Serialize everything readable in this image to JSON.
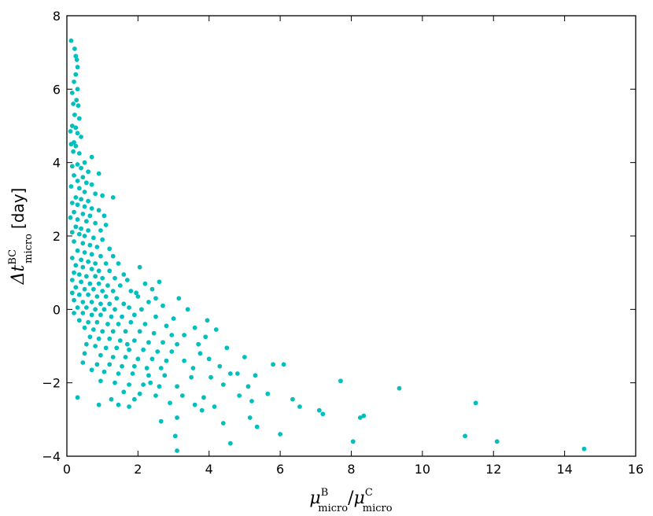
{
  "chart_data": {
    "type": "scatter",
    "title": "",
    "xlabel": {
      "base": "μ",
      "sup": "B",
      "sub": "micro",
      "sep": "/",
      "base2": "μ",
      "sup2": "C",
      "sub2": "micro"
    },
    "ylabel": {
      "base": "Δt",
      "sup": "BC",
      "sub": "micro",
      "unit": "[day]"
    },
    "xlim": [
      0,
      16
    ],
    "ylim": [
      -4,
      8
    ],
    "xticks": [
      "0",
      "2",
      "4",
      "6",
      "8",
      "10",
      "12",
      "14",
      "16"
    ],
    "yticks": [
      "−4",
      "−2",
      "0",
      "2",
      "4",
      "6",
      "8"
    ],
    "grid": false,
    "marker_color": "#00BFBF",
    "series": [
      {
        "points": [
          [
            0.12,
            7.32
          ],
          [
            0.22,
            7.1
          ],
          [
            0.25,
            6.9
          ],
          [
            0.28,
            6.8
          ],
          [
            0.3,
            6.6
          ],
          [
            0.25,
            6.4
          ],
          [
            0.2,
            6.2
          ],
          [
            0.3,
            6.0
          ],
          [
            0.15,
            5.9
          ],
          [
            0.27,
            5.7
          ],
          [
            0.18,
            5.6
          ],
          [
            0.32,
            5.55
          ],
          [
            0.22,
            5.3
          ],
          [
            0.35,
            5.2
          ],
          [
            0.15,
            5.0
          ],
          [
            0.25,
            4.95
          ],
          [
            0.1,
            4.85
          ],
          [
            0.3,
            4.8
          ],
          [
            0.4,
            4.7
          ],
          [
            0.2,
            4.55
          ],
          [
            0.12,
            4.5
          ],
          [
            0.25,
            4.45
          ],
          [
            0.18,
            4.3
          ],
          [
            0.35,
            4.25
          ],
          [
            0.7,
            4.15
          ],
          [
            0.5,
            4.0
          ],
          [
            0.3,
            3.95
          ],
          [
            0.15,
            3.9
          ],
          [
            0.4,
            3.85
          ],
          [
            0.6,
            3.75
          ],
          [
            0.9,
            3.7
          ],
          [
            0.2,
            3.65
          ],
          [
            0.45,
            3.6
          ],
          [
            0.3,
            3.5
          ],
          [
            0.55,
            3.45
          ],
          [
            0.7,
            3.4
          ],
          [
            0.12,
            3.35
          ],
          [
            0.35,
            3.3
          ],
          [
            0.5,
            3.2
          ],
          [
            0.8,
            3.15
          ],
          [
            1.0,
            3.1
          ],
          [
            0.25,
            3.05
          ],
          [
            0.4,
            3.0
          ],
          [
            0.6,
            2.95
          ],
          [
            1.3,
            3.05
          ],
          [
            0.15,
            2.9
          ],
          [
            0.3,
            2.85
          ],
          [
            0.5,
            2.8
          ],
          [
            0.7,
            2.75
          ],
          [
            0.9,
            2.7
          ],
          [
            0.2,
            2.65
          ],
          [
            0.45,
            2.6
          ],
          [
            0.65,
            2.55
          ],
          [
            1.05,
            2.55
          ],
          [
            0.1,
            2.5
          ],
          [
            0.3,
            2.45
          ],
          [
            0.55,
            2.4
          ],
          [
            0.8,
            2.35
          ],
          [
            1.1,
            2.3
          ],
          [
            0.25,
            2.25
          ],
          [
            0.4,
            2.2
          ],
          [
            0.6,
            2.15
          ],
          [
            0.95,
            2.15
          ],
          [
            0.15,
            2.1
          ],
          [
            0.35,
            2.05
          ],
          [
            0.5,
            2.0
          ],
          [
            0.75,
            1.95
          ],
          [
            1.0,
            1.9
          ],
          [
            0.2,
            1.85
          ],
          [
            0.45,
            1.8
          ],
          [
            0.65,
            1.75
          ],
          [
            0.85,
            1.7
          ],
          [
            1.2,
            1.65
          ],
          [
            0.3,
            1.6
          ],
          [
            0.5,
            1.55
          ],
          [
            0.7,
            1.5
          ],
          [
            0.95,
            1.45
          ],
          [
            1.3,
            1.45
          ],
          [
            0.15,
            1.4
          ],
          [
            0.4,
            1.35
          ],
          [
            0.6,
            1.3
          ],
          [
            0.8,
            1.25
          ],
          [
            1.1,
            1.25
          ],
          [
            1.45,
            1.25
          ],
          [
            0.25,
            1.2
          ],
          [
            0.45,
            1.15
          ],
          [
            0.7,
            1.1
          ],
          [
            0.9,
            1.05
          ],
          [
            1.2,
            1.05
          ],
          [
            2.05,
            1.15
          ],
          [
            0.2,
            1.0
          ],
          [
            0.35,
            0.95
          ],
          [
            0.55,
            0.9
          ],
          [
            0.8,
            0.9
          ],
          [
            1.0,
            0.85
          ],
          [
            1.35,
            0.85
          ],
          [
            1.7,
            0.8
          ],
          [
            0.15,
            0.8
          ],
          [
            0.4,
            0.75
          ],
          [
            0.65,
            0.7
          ],
          [
            0.9,
            0.7
          ],
          [
            1.15,
            0.65
          ],
          [
            1.5,
            0.65
          ],
          [
            2.2,
            0.7
          ],
          [
            2.6,
            0.75
          ],
          [
            0.25,
            0.6
          ],
          [
            0.5,
            0.55
          ],
          [
            0.75,
            0.55
          ],
          [
            1.0,
            0.5
          ],
          [
            1.3,
            0.5
          ],
          [
            1.8,
            0.5
          ],
          [
            2.4,
            0.55
          ],
          [
            0.15,
            0.45
          ],
          [
            0.35,
            0.4
          ],
          [
            0.6,
            0.4
          ],
          [
            0.85,
            0.35
          ],
          [
            1.1,
            0.35
          ],
          [
            1.4,
            0.3
          ],
          [
            2.0,
            0.35
          ],
          [
            3.15,
            0.3
          ],
          [
            0.2,
            0.25
          ],
          [
            0.45,
            0.2
          ],
          [
            0.7,
            0.2
          ],
          [
            0.95,
            0.15
          ],
          [
            1.2,
            0.15
          ],
          [
            1.6,
            0.15
          ],
          [
            2.3,
            0.2
          ],
          [
            0.3,
            0.05
          ],
          [
            0.55,
            0.05
          ],
          [
            0.8,
            0.0
          ],
          [
            1.05,
            0.0
          ],
          [
            1.35,
            0.0
          ],
          [
            1.75,
            0.05
          ],
          [
            2.1,
            0.0
          ],
          [
            2.7,
            0.1
          ],
          [
            3.4,
            0.0
          ],
          [
            0.2,
            -0.1
          ],
          [
            0.45,
            -0.1
          ],
          [
            0.7,
            -0.15
          ],
          [
            0.95,
            -0.15
          ],
          [
            1.25,
            -0.2
          ],
          [
            1.55,
            -0.2
          ],
          [
            1.9,
            -0.15
          ],
          [
            2.5,
            -0.2
          ],
          [
            3.0,
            -0.25
          ],
          [
            0.35,
            -0.3
          ],
          [
            0.6,
            -0.35
          ],
          [
            0.85,
            -0.35
          ],
          [
            1.15,
            -0.4
          ],
          [
            1.45,
            -0.4
          ],
          [
            1.8,
            -0.35
          ],
          [
            2.2,
            -0.4
          ],
          [
            2.8,
            -0.45
          ],
          [
            3.6,
            -0.5
          ],
          [
            4.2,
            -0.55
          ],
          [
            0.5,
            -0.5
          ],
          [
            0.75,
            -0.55
          ],
          [
            1.0,
            -0.6
          ],
          [
            1.3,
            -0.6
          ],
          [
            1.65,
            -0.6
          ],
          [
            2.05,
            -0.6
          ],
          [
            2.45,
            -0.65
          ],
          [
            3.3,
            -0.7
          ],
          [
            3.9,
            -0.75
          ],
          [
            0.65,
            -0.75
          ],
          [
            0.9,
            -0.8
          ],
          [
            1.2,
            -0.8
          ],
          [
            1.5,
            -0.85
          ],
          [
            1.9,
            -0.85
          ],
          [
            2.3,
            -0.9
          ],
          [
            2.7,
            -0.9
          ],
          [
            3.1,
            -0.95
          ],
          [
            3.7,
            -0.95
          ],
          [
            0.8,
            -1.0
          ],
          [
            1.1,
            -1.05
          ],
          [
            1.4,
            -1.05
          ],
          [
            1.75,
            -1.1
          ],
          [
            2.15,
            -1.1
          ],
          [
            2.55,
            -1.15
          ],
          [
            2.95,
            -1.15
          ],
          [
            4.5,
            -1.05
          ],
          [
            0.5,
            -1.2
          ],
          [
            0.95,
            -1.25
          ],
          [
            1.3,
            -1.3
          ],
          [
            1.65,
            -1.3
          ],
          [
            2.0,
            -1.35
          ],
          [
            2.4,
            -1.35
          ],
          [
            2.8,
            -1.4
          ],
          [
            3.3,
            -1.4
          ],
          [
            4.0,
            -1.35
          ],
          [
            5.0,
            -1.3
          ],
          [
            0.45,
            -1.45
          ],
          [
            0.85,
            -1.5
          ],
          [
            1.2,
            -1.5
          ],
          [
            1.55,
            -1.55
          ],
          [
            1.9,
            -1.55
          ],
          [
            2.25,
            -1.6
          ],
          [
            2.65,
            -1.6
          ],
          [
            3.55,
            -1.6
          ],
          [
            4.3,
            -1.55
          ],
          [
            5.8,
            -1.5
          ],
          [
            6.1,
            -1.5
          ],
          [
            0.7,
            -1.65
          ],
          [
            1.05,
            -1.7
          ],
          [
            1.45,
            -1.75
          ],
          [
            1.85,
            -1.75
          ],
          [
            2.3,
            -1.8
          ],
          [
            2.75,
            -1.8
          ],
          [
            3.5,
            -1.85
          ],
          [
            4.05,
            -1.85
          ],
          [
            4.8,
            -1.75
          ],
          [
            5.3,
            -1.8
          ],
          [
            0.95,
            -1.95
          ],
          [
            1.35,
            -2.0
          ],
          [
            1.75,
            -2.05
          ],
          [
            2.15,
            -2.05
          ],
          [
            2.6,
            -2.1
          ],
          [
            3.1,
            -2.1
          ],
          [
            4.4,
            -2.05
          ],
          [
            5.1,
            -2.1
          ],
          [
            7.7,
            -1.95
          ],
          [
            9.35,
            -2.15
          ],
          [
            1.6,
            -2.25
          ],
          [
            2.05,
            -2.3
          ],
          [
            2.5,
            -2.35
          ],
          [
            3.25,
            -2.35
          ],
          [
            3.85,
            -2.4
          ],
          [
            4.85,
            -2.35
          ],
          [
            5.65,
            -2.3
          ],
          [
            6.35,
            -2.45
          ],
          [
            0.3,
            -2.4
          ],
          [
            1.25,
            -2.45
          ],
          [
            1.9,
            -2.45
          ],
          [
            2.9,
            -2.55
          ],
          [
            3.6,
            -2.6
          ],
          [
            4.15,
            -2.65
          ],
          [
            5.2,
            -2.5
          ],
          [
            6.55,
            -2.65
          ],
          [
            7.1,
            -2.75
          ],
          [
            7.2,
            -2.85
          ],
          [
            8.35,
            -2.9
          ],
          [
            8.25,
            -2.95
          ],
          [
            11.5,
            -2.55
          ],
          [
            0.9,
            -2.6
          ],
          [
            1.45,
            -2.6
          ],
          [
            1.75,
            -2.65
          ],
          [
            3.8,
            -2.75
          ],
          [
            3.1,
            -2.95
          ],
          [
            2.65,
            -3.05
          ],
          [
            5.15,
            -2.95
          ],
          [
            4.4,
            -3.1
          ],
          [
            5.35,
            -3.2
          ],
          [
            6.0,
            -3.4
          ],
          [
            3.05,
            -3.45
          ],
          [
            8.05,
            -3.6
          ],
          [
            11.2,
            -3.45
          ],
          [
            12.1,
            -3.6
          ],
          [
            4.6,
            -3.65
          ],
          [
            3.1,
            -3.85
          ],
          [
            14.55,
            -3.8
          ],
          [
            2.35,
            -2.0
          ],
          [
            3.75,
            -1.2
          ],
          [
            4.6,
            -1.75
          ],
          [
            0.55,
            -0.95
          ],
          [
            1.7,
            -0.95
          ],
          [
            2.95,
            -0.7
          ],
          [
            3.95,
            -0.3
          ],
          [
            1.6,
            0.95
          ],
          [
            1.95,
            0.45
          ],
          [
            2.5,
            0.3
          ]
        ]
      }
    ]
  }
}
